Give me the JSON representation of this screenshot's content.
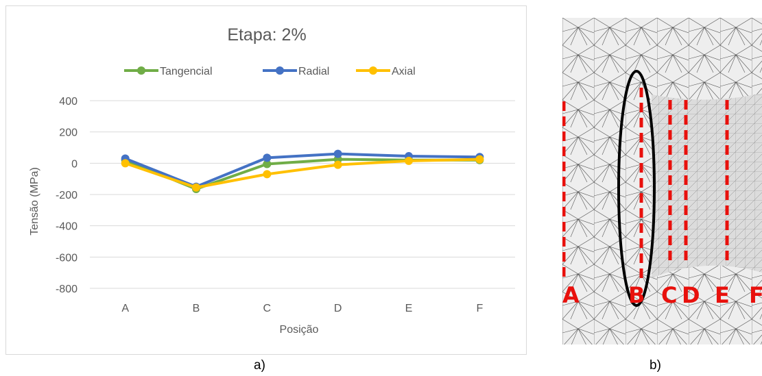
{
  "captions": {
    "left": "a)",
    "right": "b)"
  },
  "colors": {
    "tangencial": "#70ad47",
    "radial": "#4472c4",
    "axial": "#ffc000",
    "grid": "#d9d9d9",
    "text": "#595959",
    "section_line": "#e8100c",
    "ellipse": "#000000",
    "mesh_fill": "#8b88d6"
  },
  "chart_data": {
    "type": "line",
    "title": "Etapa: 2%",
    "xlabel": "Posição",
    "ylabel": "Tensão (MPa)",
    "categories": [
      "A",
      "B",
      "C",
      "D",
      "E",
      "F"
    ],
    "ylim": [
      -800,
      400
    ],
    "yticks": [
      400,
      200,
      0,
      -200,
      -400,
      -600,
      -800
    ],
    "grid": true,
    "legend_position": "top",
    "series": [
      {
        "name": "Tangencial",
        "values": [
          20,
          -165,
          -5,
          25,
          20,
          20
        ]
      },
      {
        "name": "Radial",
        "values": [
          30,
          -150,
          35,
          60,
          45,
          40
        ]
      },
      {
        "name": "Axial",
        "values": [
          0,
          -155,
          -70,
          -10,
          15,
          25
        ]
      }
    ]
  },
  "mesh_image": {
    "section_labels": [
      "A",
      "B",
      "C",
      "D",
      "E",
      "F"
    ]
  }
}
